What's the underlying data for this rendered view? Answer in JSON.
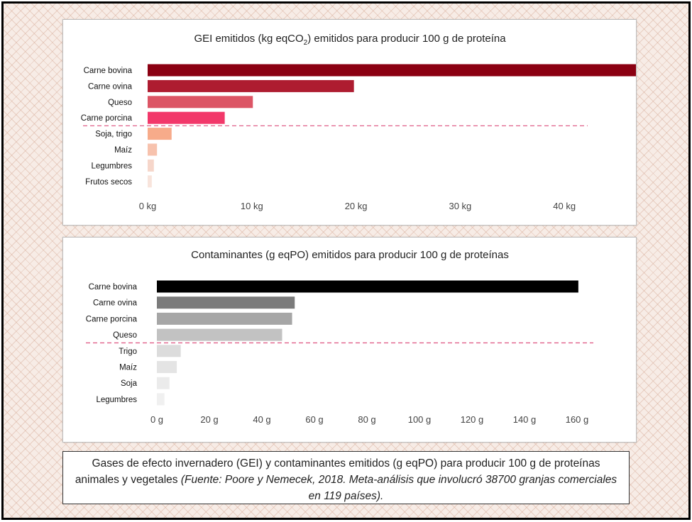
{
  "chart_data": [
    {
      "type": "bar",
      "orientation": "horizontal",
      "title": "GEI emitidos (kg eqCO",
      "title_subscript": "2",
      "title_suffix": ") emitidos para producir 100 g de proteína",
      "categories": [
        "Carne bovina",
        "Carne ovina",
        "Queso",
        "Carne porcina",
        "Soja, trigo",
        "Maíz",
        "Legumbres",
        "Frutos secos"
      ],
      "values": [
        50,
        19.8,
        10.1,
        7.4,
        2.3,
        0.9,
        0.6,
        0.4
      ],
      "colors": [
        "#8b0012",
        "#ae1c30",
        "#dc5565",
        "#f2386a",
        "#f7ab8a",
        "#f7c2ad",
        "#f6d6ca",
        "#f8e4dc"
      ],
      "tick_values": [
        0,
        10,
        20,
        30,
        40
      ],
      "tick_labels": [
        "0 kg",
        "10 kg",
        "20 kg",
        "30 kg",
        "40 kg"
      ],
      "xlim": [
        0,
        50
      ],
      "separator_after_index": 3,
      "separator_color": "#e0608a"
    },
    {
      "type": "bar",
      "orientation": "horizontal",
      "title": "Contaminantes (g eqPO) emitidos para producir 100 g de proteínas",
      "categories": [
        "Carne bovina",
        "Carne ovina",
        "Carne porcina",
        "Queso",
        "Trigo",
        "Maíz",
        "Soja",
        "Legumbres"
      ],
      "values": [
        160.5,
        52.5,
        51.5,
        47.7,
        9.1,
        7.6,
        4.8,
        2.9
      ],
      "colors": [
        "#000000",
        "#7b7b7b",
        "#a6a6a6",
        "#c2c2c2",
        "#dcdcdc",
        "#e4e4e4",
        "#ebebeb",
        "#f0f0f0"
      ],
      "tick_values": [
        0,
        20,
        40,
        60,
        80,
        100,
        120,
        140,
        160
      ],
      "tick_labels": [
        "0 g",
        "20 g",
        "40 g",
        "60 g",
        "80 g",
        "100 g",
        "120 g",
        "140 g",
        "160 g"
      ],
      "xlim": [
        0,
        160
      ],
      "separator_after_index": 3,
      "separator_color": "#e0608a"
    }
  ],
  "caption": {
    "main": "Gases de efecto invernadero (GEI) y contaminantes emitidos  (g eqPO) para producir 100 g de proteínas animales y vegetales ",
    "source": "(Fuente: Poore y Nemecek, 2018. Meta-análisis que involucró 38700 granjas comerciales en 119 países)."
  }
}
